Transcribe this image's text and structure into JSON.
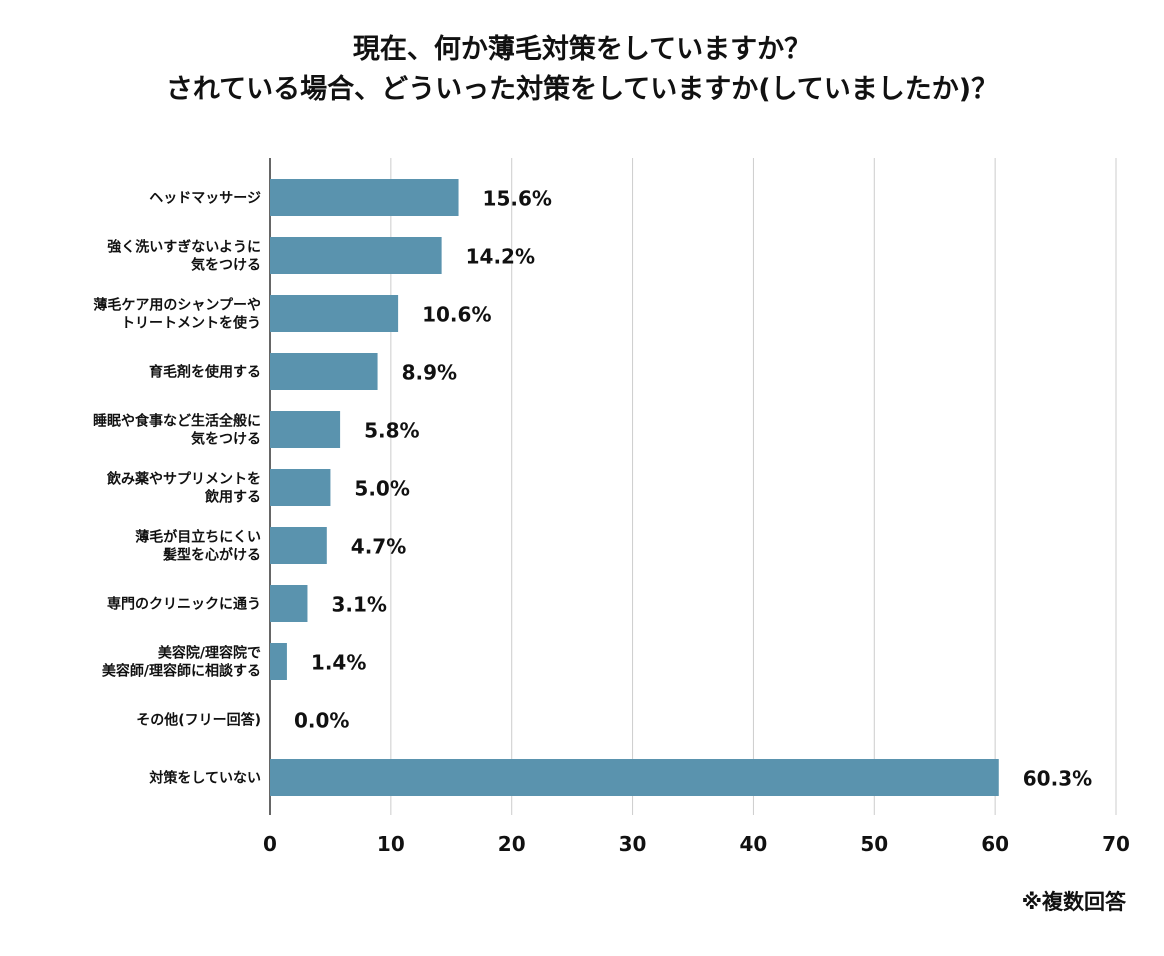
{
  "title": {
    "line1": "現在、何か薄毛対策をしていますか？",
    "line2": "されている場合、どういった対策をしていますか(していましたか)？"
  },
  "note": "※複数回答",
  "colors": {
    "bar": "#5a93ae",
    "grid": "#cccccc",
    "axis": "#333333",
    "text": "#111111"
  },
  "chart_data": {
    "type": "bar",
    "orientation": "horizontal",
    "categories": [
      [
        "ヘッドマッサージ"
      ],
      [
        "強く洗いすぎないように",
        "気をつける"
      ],
      [
        "薄毛ケア用のシャンプーや",
        "トリートメントを使う"
      ],
      [
        "育毛剤を使用する"
      ],
      [
        "睡眠や食事など生活全般に",
        "気をつける"
      ],
      [
        "飲み薬やサプリメントを",
        "飲用する"
      ],
      [
        "薄毛が目立ちにくい",
        "髪型を心がける"
      ],
      [
        "専門のクリニックに通う"
      ],
      [
        "美容院/理容院で",
        "美容師/理容師に相談する"
      ],
      [
        "その他(フリー回答)"
      ],
      [
        "対策をしていない"
      ]
    ],
    "values": [
      15.6,
      14.2,
      10.6,
      8.9,
      5.8,
      5.0,
      4.7,
      3.1,
      1.4,
      0.0,
      60.3
    ],
    "data_labels": [
      "15.6%",
      "14.2%",
      "10.6%",
      "8.9%",
      "5.8%",
      "5.0%",
      "4.7%",
      "3.1%",
      "1.4%",
      "0.0%",
      "60.3%"
    ],
    "xlim": [
      0,
      70
    ],
    "xticks": [
      0,
      10,
      20,
      30,
      40,
      50,
      60,
      70
    ],
    "grid": true,
    "xlabel": "",
    "ylabel": ""
  }
}
